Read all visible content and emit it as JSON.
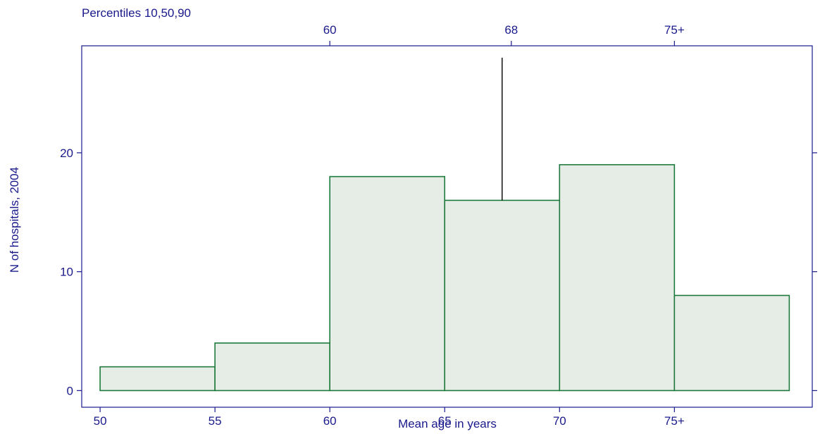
{
  "chart_data": {
    "type": "bar",
    "title": "",
    "xlabel": "Mean age in years",
    "ylabel": "N of hospitals, 2004",
    "top_axis_title": "Percentiles 10,50,90",
    "bins": [
      {
        "start": 50,
        "end": 55,
        "count": 2
      },
      {
        "start": 55,
        "end": 60,
        "count": 4
      },
      {
        "start": 60,
        "end": 65,
        "count": 18
      },
      {
        "start": 65,
        "end": 70,
        "count": 16
      },
      {
        "start": 70,
        "end": 75,
        "count": 19
      },
      {
        "start": 75,
        "end": 80,
        "count": 8
      }
    ],
    "x_ticks": [
      {
        "value": 50,
        "label": "50"
      },
      {
        "value": 55,
        "label": "55"
      },
      {
        "value": 60,
        "label": "60"
      },
      {
        "value": 65,
        "label": "65"
      },
      {
        "value": 70,
        "label": "70"
      },
      {
        "value": 75,
        "label": "75+"
      }
    ],
    "y_ticks": [
      {
        "value": 0,
        "label": "0"
      },
      {
        "value": 10,
        "label": "10"
      },
      {
        "value": 20,
        "label": "20"
      }
    ],
    "percentile_ticks": [
      {
        "value": 60,
        "label": "60"
      },
      {
        "value": 67.9,
        "label": "68"
      },
      {
        "value": 75,
        "label": "75+"
      }
    ],
    "median_line": {
      "x": 67.5,
      "y_from": 16,
      "y_to": 28
    },
    "xlim": [
      49.2,
      81.0
    ],
    "ylim": [
      -1.4,
      29
    ],
    "grid": false,
    "colors": {
      "axis": "#1a1a8c",
      "bar_edge": "#1e7a3c",
      "bar_fill": "#e6ede6",
      "median_line": "#000000"
    }
  }
}
